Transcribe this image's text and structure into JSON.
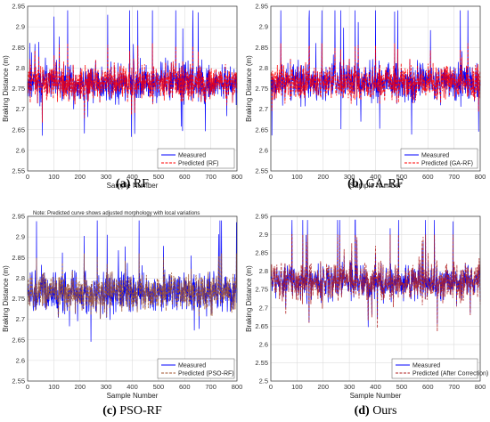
{
  "chart_data": [
    {
      "type": "line",
      "caption_letter": "(a)",
      "caption_text": " RF",
      "xlabel": "Sample Number",
      "ylabel": "Braking Distance (m)",
      "xlim": [
        0,
        800
      ],
      "ylim": [
        2.55,
        2.95
      ],
      "xticks": [
        "0",
        "100",
        "200",
        "300",
        "400",
        "500",
        "600",
        "700",
        "800"
      ],
      "yticks": [
        "2.55",
        "2.6",
        "2.65",
        "2.7",
        "2.75",
        "2.8",
        "2.85",
        "2.9",
        "2.95"
      ],
      "grid": true,
      "legend_position": "bottom-right",
      "note": "",
      "series": [
        {
          "name": "Measured",
          "color": "#0000ff",
          "style": "solid"
        },
        {
          "name": "Predicted (RF)",
          "color": "#ff0000",
          "style": "dashed"
        }
      ],
      "measured_range": [
        2.59,
        2.94
      ],
      "predicted_range": [
        2.66,
        2.86
      ],
      "samples": 800
    },
    {
      "type": "line",
      "caption_letter": "(b)",
      "caption_text": " GA-RF",
      "xlabel": "Sample Number",
      "ylabel": "Braking Distance (m)",
      "xlim": [
        0,
        800
      ],
      "ylim": [
        2.55,
        2.95
      ],
      "xticks": [
        "0",
        "100",
        "200",
        "300",
        "400",
        "500",
        "600",
        "700",
        "800"
      ],
      "yticks": [
        "2.55",
        "2.6",
        "2.65",
        "2.7",
        "2.75",
        "2.8",
        "2.85",
        "2.9",
        "2.95"
      ],
      "grid": true,
      "legend_position": "bottom-right",
      "note": "",
      "series": [
        {
          "name": "Measured",
          "color": "#0000ff",
          "style": "solid"
        },
        {
          "name": "Predicted (GA-RF)",
          "color": "#ff0000",
          "style": "dashed"
        }
      ],
      "measured_range": [
        2.59,
        2.94
      ],
      "predicted_range": [
        2.67,
        2.86
      ],
      "samples": 800
    },
    {
      "type": "line",
      "caption_letter": "(c)",
      "caption_text": " PSO-RF",
      "xlabel": "Sample Number",
      "ylabel": "Braking Distance (m)",
      "xlim": [
        0,
        800
      ],
      "ylim": [
        2.55,
        2.95
      ],
      "xticks": [
        "0",
        "100",
        "200",
        "300",
        "400",
        "500",
        "600",
        "700",
        "800"
      ],
      "yticks": [
        "2.55",
        "2.6",
        "2.65",
        "2.7",
        "2.75",
        "2.8",
        "2.85",
        "2.9",
        "2.95"
      ],
      "grid": true,
      "legend_position": "bottom-right",
      "note": "Note: Predicted curve shows adjusted morphology with local variations",
      "series": [
        {
          "name": "Measured",
          "color": "#0000ff",
          "style": "solid"
        },
        {
          "name": "Predicted (PSO-RF)",
          "color": "#a0522d",
          "style": "dashed"
        }
      ],
      "measured_range": [
        2.59,
        2.94
      ],
      "predicted_range": [
        2.66,
        2.86
      ],
      "samples": 800
    },
    {
      "type": "line",
      "caption_letter": "(d)",
      "caption_text": " Ours",
      "xlabel": "Sample Number",
      "ylabel": "Braking Distance (m)",
      "xlim": [
        0,
        800
      ],
      "ylim": [
        2.5,
        2.95
      ],
      "xticks": [
        "0",
        "100",
        "200",
        "300",
        "400",
        "500",
        "600",
        "700",
        "800"
      ],
      "yticks": [
        "2.5",
        "2.55",
        "2.6",
        "2.65",
        "2.7",
        "2.75",
        "2.8",
        "2.85",
        "2.9",
        "2.95"
      ],
      "grid": true,
      "legend_position": "bottom-right",
      "note": "",
      "series": [
        {
          "name": "Measured",
          "color": "#0000ff",
          "style": "solid"
        },
        {
          "name": "Predicted (After Correction)",
          "color": "#b22222",
          "style": "dashed"
        }
      ],
      "measured_range": [
        2.52,
        2.94
      ],
      "predicted_range": [
        2.52,
        2.9
      ],
      "samples": 800
    }
  ]
}
